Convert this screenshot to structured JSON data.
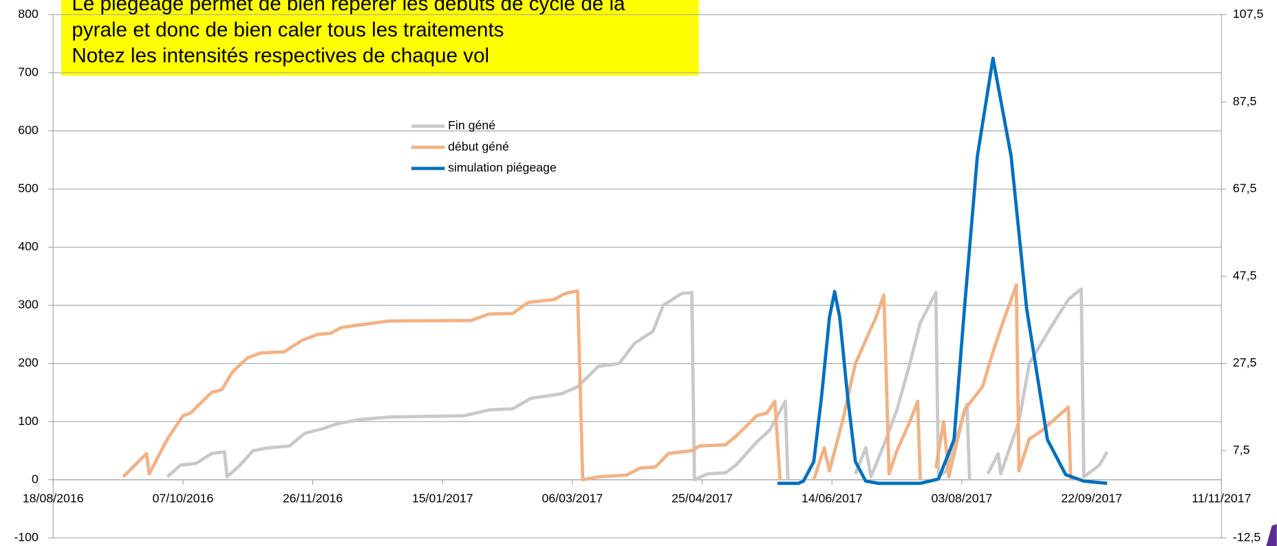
{
  "chart_data": {
    "type": "line",
    "annotation": [
      "Le piégeage permet de bien repérer les débuts de cycle de la",
      "pyrale et donc de bien caler tous les traitements",
      "Notez les intensités respectives de chaque vol"
    ],
    "xlim": [
      "18/08/2016",
      "11/11/2017"
    ],
    "xticks": [
      "18/08/2016",
      "07/10/2016",
      "26/11/2016",
      "15/01/2017",
      "06/03/2017",
      "25/04/2017",
      "14/06/2017",
      "03/08/2017",
      "22/09/2017",
      "11/11/2017"
    ],
    "ylim": [
      -100,
      800
    ],
    "yticks": [
      -100,
      0,
      100,
      200,
      300,
      400,
      500,
      600,
      700,
      800
    ],
    "y2lim": [
      -12.5,
      107.5
    ],
    "y2ticks": [
      {
        "value": -12.5,
        "label": "-12,5"
      },
      {
        "value": 7.5,
        "label": "7,5"
      },
      {
        "value": 27.5,
        "label": "27,5"
      },
      {
        "value": 47.5,
        "label": "47,5"
      },
      {
        "value": 67.5,
        "label": "67,5"
      },
      {
        "value": 87.5,
        "label": "87,5"
      },
      {
        "value": 107.5,
        "label": "107,5"
      }
    ],
    "grid": true,
    "series": [
      {
        "name": "Fin géné",
        "color": "#c9c9c9",
        "x": [
          "01/10/2016",
          "06/10/2016",
          "12/10/2016",
          "18/10/2016",
          "23/10/2016",
          "24/10/2016",
          "29/10/2016",
          "03/11/2016",
          "09/11/2016",
          "17/11/2016",
          "23/11/2016",
          "30/11/2016",
          "06/12/2016",
          "15/12/2016",
          "26/12/2016",
          "23/01/2017",
          "02/02/2017",
          "11/02/2017",
          "18/02/2017",
          "02/03/2017",
          "08/03/2017",
          "16/03/2017",
          "24/03/2017",
          "30/03/2017",
          "06/04/2017",
          "10/04/2017",
          "17/04/2017",
          "21/04/2017",
          "22/04/2017",
          "27/04/2017",
          "04/05/2017",
          "08/05/2017",
          "16/05/2017",
          "21/05/2017",
          "27/05/2017",
          "28/05/2017",
          "10/06/2017",
          "23/06/2017",
          "27/06/2017",
          "29/06/2017",
          "04/07/2017",
          "09/07/2017",
          "14/07/2017",
          "18/07/2017",
          "24/07/2017",
          "25/07/2017",
          "28/07/2017",
          "05/08/2017",
          "06/08/2017",
          "10/08/2017",
          "13/08/2017",
          "17/08/2017",
          "18/08/2017",
          "25/08/2017",
          "29/08/2017",
          "06/09/2017",
          "13/09/2017",
          "18/09/2017",
          "19/09/2017",
          "25/09/2017",
          "28/09/2017"
        ],
        "values": [
          5,
          25,
          28,
          45,
          48,
          5,
          25,
          50,
          55,
          58,
          80,
          88,
          97,
          104,
          108,
          110,
          120,
          122,
          140,
          148,
          160,
          195,
          200,
          235,
          255,
          300,
          320,
          322,
          0,
          10,
          12,
          25,
          65,
          85,
          135,
          0,
          null,
          10,
          55,
          5,
          60,
          120,
          200,
          270,
          322,
          5,
          15,
          130,
          0,
          null,
          10,
          45,
          10,
          100,
          200,
          260,
          310,
          328,
          5,
          25,
          48
        ]
      },
      {
        "name": "début géné",
        "color": "#f4b183",
        "x": [
          "14/09/2016",
          "23/09/2016",
          "24/09/2016",
          "01/10/2016",
          "07/10/2016",
          "10/10/2016",
          "18/10/2016",
          "22/10/2016",
          "26/10/2016",
          "01/11/2016",
          "06/11/2016",
          "15/11/2016",
          "22/11/2016",
          "28/11/2016",
          "03/12/2016",
          "07/12/2016",
          "17/12/2016",
          "25/12/2016",
          "26/01/2017",
          "02/02/2017",
          "11/02/2017",
          "17/02/2017",
          "27/02/2017",
          "03/03/2017",
          "08/03/2017",
          "10/03/2017",
          "16/03/2017",
          "27/03/2017",
          "01/04/2017",
          "07/04/2017",
          "12/04/2017",
          "21/04/2017",
          "24/04/2017",
          "04/05/2017",
          "08/05/2017",
          "16/05/2017",
          "20/05/2017",
          "23/05/2017",
          "25/05/2017",
          "01/06/2017",
          "07/06/2017",
          "11/06/2017",
          "13/06/2017",
          "18/06/2017",
          "23/06/2017",
          "28/06/2017",
          "01/07/2017",
          "04/07/2017",
          "06/07/2017",
          "09/07/2017",
          "14/07/2017",
          "17/07/2017",
          "18/07/2017",
          "21/07/2017",
          "24/07/2017",
          "27/07/2017",
          "29/07/2017",
          "04/08/2017",
          "11/08/2017",
          "15/08/2017",
          "18/08/2017",
          "24/08/2017",
          "25/08/2017",
          "29/08/2017",
          "03/09/2017",
          "08/09/2017",
          "13/09/2017",
          "14/09/2017"
        ],
        "values": [
          5,
          45,
          10,
          70,
          110,
          115,
          150,
          155,
          185,
          210,
          218,
          220,
          240,
          250,
          252,
          262,
          268,
          273,
          274,
          285,
          286,
          305,
          310,
          320,
          325,
          0,
          5,
          8,
          20,
          22,
          45,
          50,
          58,
          60,
          75,
          110,
          115,
          135,
          0,
          null,
          0,
          55,
          15,
          100,
          200,
          250,
          280,
          318,
          10,
          50,
          100,
          135,
          0,
          null,
          20,
          100,
          5,
          120,
          160,
          220,
          260,
          335,
          15,
          70,
          85,
          105,
          125,
          0
        ]
      },
      {
        "name": "simulation piégeage",
        "color": "#0070c0",
        "axis": "y2",
        "x": [
          "24/05/2017",
          "01/06/2017",
          "03/06/2017",
          "07/06/2017",
          "10/06/2017",
          "13/06/2017",
          "15/06/2017",
          "17/06/2017",
          "20/06/2017",
          "23/06/2017",
          "27/06/2017",
          "02/07/2017",
          "18/07/2017",
          "25/07/2017",
          "31/07/2017",
          "04/08/2017",
          "09/08/2017",
          "15/08/2017",
          "22/08/2017",
          "28/08/2017",
          "05/09/2017",
          "12/09/2017",
          "19/09/2017",
          "28/09/2017"
        ],
        "values": [
          0,
          0,
          0.5,
          5,
          20,
          38,
          44,
          38,
          20,
          5,
          0.5,
          0,
          0,
          1,
          10,
          40,
          75,
          97.5,
          75,
          40,
          10,
          2,
          0.5,
          0
        ]
      }
    ]
  }
}
